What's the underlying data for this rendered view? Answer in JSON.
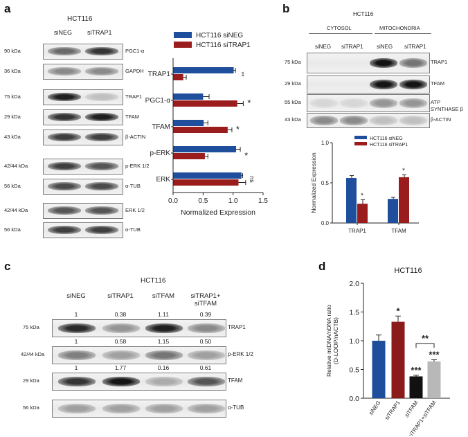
{
  "panel_a": {
    "letter": "a",
    "cell_line": "HCT116",
    "lanes": [
      "siNEG",
      "siTRAP1"
    ],
    "blots": [
      {
        "mw": "90 kDa",
        "protein": "PGC1-α",
        "bands": [
          0.6,
          0.85
        ]
      },
      {
        "mw": "36 kDa",
        "protein": "GAPDH",
        "bands": [
          0.45,
          0.45
        ]
      },
      {
        "mw": "75 kDa",
        "protein": "TRAP1",
        "bands": [
          0.95,
          0.2
        ]
      },
      {
        "mw": "29 kDa",
        "protein": "TFAM",
        "bands": [
          0.85,
          0.95
        ]
      },
      {
        "mw": "43 kDa",
        "protein": "β-ACTIN",
        "bands": [
          0.8,
          0.8
        ]
      },
      {
        "mw": "42/44 kDa",
        "protein": "p-ERK 1/2",
        "bands": [
          0.8,
          0.7
        ]
      },
      {
        "mw": "56 kDa",
        "protein": "α-TUB",
        "bands": [
          0.75,
          0.75
        ]
      },
      {
        "mw": "42/44 kDa",
        "protein": "ERK 1/2",
        "bands": [
          0.7,
          0.7
        ]
      },
      {
        "mw": "56 kDa",
        "protein": "α-TUB",
        "bands": [
          0.8,
          0.8
        ]
      }
    ]
  },
  "chart_a": {
    "type": "bar",
    "orientation": "horizontal",
    "categories": [
      "TRAP1",
      "PGC1-α",
      "TFAM",
      "p-ERK",
      "ERK"
    ],
    "series": [
      {
        "name": "HCT116 siNEG",
        "color": "#1f4e9c",
        "values": [
          1.01,
          0.5,
          0.51,
          1.05,
          1.14
        ],
        "errors": [
          0.03,
          0.1,
          0.07,
          0.07,
          0.02
        ]
      },
      {
        "name": "HCT116 siTRAP1",
        "color": "#9b1c1c",
        "values": [
          0.17,
          1.07,
          0.91,
          0.53,
          1.09
        ],
        "errors": [
          0.05,
          0.1,
          0.07,
          0.05,
          0.12
        ]
      }
    ],
    "significance": [
      "**",
      "*",
      "*",
      "*",
      "ns"
    ],
    "xlabel": "Normalized Expression",
    "xlim": [
      0.0,
      1.5
    ],
    "xticks": [
      "0.0",
      "0.5",
      "1.0",
      "1.5"
    ]
  },
  "panel_b": {
    "letter": "b",
    "cell_line": "HCT116",
    "fractions": [
      "CYTOSOL",
      "MITOCHONDRIA"
    ],
    "lanes": [
      "siNEG",
      "siTRAP1",
      "siNEG",
      "siTRAP1"
    ],
    "blots": [
      {
        "mw": "75 kDa",
        "protein": "TRAP1",
        "bands": [
          0.0,
          0.0,
          1.0,
          0.55
        ]
      },
      {
        "mw": "29 kDa",
        "protein": "TFAM",
        "bands": [
          0.0,
          0.0,
          1.0,
          1.0
        ]
      },
      {
        "mw": "55 kDa",
        "protein": "ATP SYNTHASE β",
        "bands": [
          0.1,
          0.1,
          0.4,
          0.4
        ]
      },
      {
        "mw": "43 kDa",
        "protein": "β-ACTIN",
        "bands": [
          0.45,
          0.45,
          0.2,
          0.2
        ]
      }
    ]
  },
  "chart_b": {
    "type": "bar",
    "categories": [
      "TRAP1",
      "TFAM"
    ],
    "series": [
      {
        "name": "HCT116 siNEG",
        "color": "#1f4e9c",
        "values": [
          0.56,
          0.3
        ],
        "errors": [
          0.03,
          0.02
        ]
      },
      {
        "name": "HCT116 siTRAP1",
        "color": "#9b1c1c",
        "values": [
          0.24,
          0.57
        ],
        "errors": [
          0.05,
          0.03
        ]
      }
    ],
    "significance": [
      "*",
      "*"
    ],
    "ylabel": "Normalized Expression",
    "ylim": [
      0.0,
      1.0
    ],
    "yticks": [
      "0.0",
      "0.5",
      "1.0"
    ]
  },
  "panel_c": {
    "letter": "c",
    "cell_line": "HCT116",
    "lanes": [
      "siNEG",
      "siTRAP1",
      "siTFAM",
      "siTRAP1+\nsiTFAM"
    ],
    "blots": [
      {
        "mw": "75 kDa",
        "protein": "TRAP1",
        "quant": [
          "1",
          "0.38",
          "1.11",
          "0.39"
        ],
        "bands": [
          0.9,
          0.4,
          0.95,
          0.45
        ]
      },
      {
        "mw": "42/44 kDa",
        "protein": "p-ERK 1/2",
        "quant": [
          "1",
          "0.58",
          "1.15",
          "0.50"
        ],
        "bands": [
          0.5,
          0.35,
          0.55,
          0.35
        ]
      },
      {
        "mw": "29 kDa",
        "protein": "TFAM",
        "quant": [
          "1",
          "1.77",
          "0.16",
          "0.61"
        ],
        "bands": [
          0.85,
          1.0,
          0.3,
          0.7
        ]
      },
      {
        "mw": "56 kDa",
        "protein": "α-TUB",
        "quant": null,
        "bands": [
          0.35,
          0.35,
          0.35,
          0.35
        ]
      }
    ]
  },
  "chart_d": {
    "letter": "d",
    "type": "bar",
    "title": "HCT116",
    "categories": [
      "siNEG",
      "siTRAP1",
      "siTFAM",
      "siTRAP1+siTFAM"
    ],
    "values": [
      1.0,
      1.33,
      0.38,
      0.64
    ],
    "errors": [
      0.1,
      0.1,
      0.02,
      0.03
    ],
    "colors": [
      "#1f4e9c",
      "#8b1a1a",
      "#111111",
      "#b8b8b8"
    ],
    "significance": [
      "",
      "*",
      "***",
      "***"
    ],
    "bracket_label": "**",
    "ylabel": "Relative mtDNA/nDNA ratio\n(D-LOOP/nACTB)",
    "ylim": [
      0.0,
      2.0
    ],
    "yticks": [
      "0.0",
      "0.5",
      "1.0",
      "1.5",
      "2.0"
    ]
  }
}
